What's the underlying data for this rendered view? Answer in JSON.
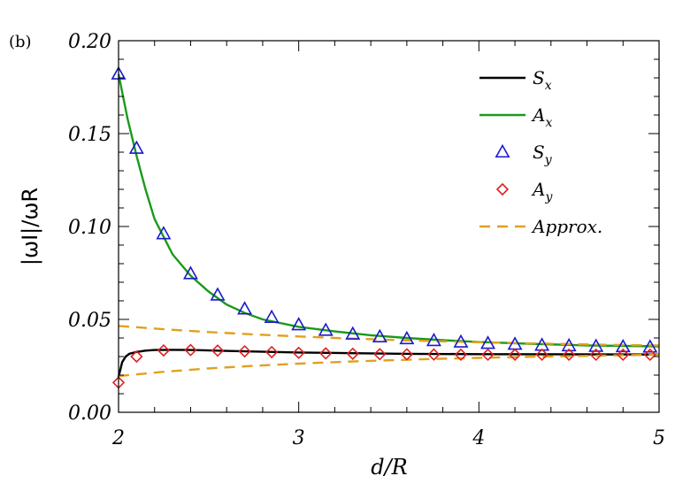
{
  "chart_data": {
    "type": "line",
    "panel_label": "(b)",
    "xlabel": "d/R",
    "ylabel": "|ωI|/ωR",
    "xlim": [
      2,
      5
    ],
    "ylim": [
      0,
      0.2
    ],
    "x_ticks": [
      2,
      3,
      4,
      5
    ],
    "x_tick_labels": [
      "2",
      "3",
      "4",
      "5"
    ],
    "y_ticks": [
      0,
      0.05,
      0.1,
      0.15,
      0.2
    ],
    "y_tick_labels": [
      "0.00",
      "0.05",
      "0.10",
      "0.15",
      "0.20"
    ],
    "grid": false,
    "legend_position": "top-right",
    "series": [
      {
        "name": "S_x",
        "label_main": "S",
        "label_sub": "x",
        "style": "solid",
        "color": "#000000",
        "x": [
          2.0,
          2.02,
          2.04,
          2.06,
          2.1,
          2.15,
          2.2,
          2.3,
          2.4,
          2.5,
          2.7,
          3.0,
          3.3,
          3.6,
          4.0,
          4.5,
          5.0
        ],
        "y": [
          0.019,
          0.027,
          0.03,
          0.0315,
          0.0325,
          0.0332,
          0.0335,
          0.0336,
          0.0335,
          0.0333,
          0.0328,
          0.0322,
          0.0318,
          0.0315,
          0.0313,
          0.0312,
          0.0311
        ]
      },
      {
        "name": "A_x",
        "label_main": "A",
        "label_sub": "x",
        "style": "solid",
        "color": "#1a9a1a",
        "x": [
          2.0,
          2.05,
          2.1,
          2.15,
          2.2,
          2.3,
          2.4,
          2.5,
          2.6,
          2.7,
          2.8,
          3.0,
          3.2,
          3.4,
          3.6,
          3.8,
          4.0,
          4.3,
          4.6,
          5.0
        ],
        "y": [
          0.182,
          0.158,
          0.138,
          0.12,
          0.104,
          0.085,
          0.0735,
          0.065,
          0.058,
          0.0535,
          0.05,
          0.046,
          0.0435,
          0.0415,
          0.04,
          0.0388,
          0.0378,
          0.0368,
          0.036,
          0.0355
        ]
      },
      {
        "name": "S_y",
        "label_main": "S",
        "label_sub": "y",
        "style": "triangle",
        "color": "#1a1acc",
        "x": [
          2.0,
          2.1,
          2.25,
          2.4,
          2.55,
          2.7,
          2.85,
          3.0,
          3.15,
          3.3,
          3.45,
          3.6,
          3.75,
          3.9,
          4.05,
          4.2,
          4.35,
          4.5,
          4.65,
          4.8,
          4.95
        ],
        "y": [
          0.182,
          0.142,
          0.096,
          0.0745,
          0.063,
          0.0555,
          0.051,
          0.047,
          0.044,
          0.042,
          0.0405,
          0.0395,
          0.0385,
          0.0377,
          0.037,
          0.0365,
          0.036,
          0.0357,
          0.0354,
          0.0352,
          0.035
        ]
      },
      {
        "name": "A_y",
        "label_main": "A",
        "label_sub": "y",
        "style": "diamond",
        "color": "#e02020",
        "x": [
          2.0,
          2.1,
          2.25,
          2.4,
          2.55,
          2.7,
          2.85,
          3.0,
          3.15,
          3.3,
          3.45,
          3.6,
          3.75,
          3.9,
          4.05,
          4.2,
          4.35,
          4.5,
          4.65,
          4.8,
          4.95
        ],
        "y": [
          0.016,
          0.03,
          0.0333,
          0.0335,
          0.0332,
          0.0328,
          0.0324,
          0.032,
          0.0317,
          0.0315,
          0.0313,
          0.0312,
          0.0311,
          0.031,
          0.031,
          0.031,
          0.031,
          0.031,
          0.031,
          0.031,
          0.031
        ]
      },
      {
        "name": "Approx.",
        "label_main": "Approx.",
        "label_sub": "",
        "style": "dashed",
        "color": "#e0a020",
        "branches": [
          {
            "x": [
              2.0,
              2.25,
              2.5,
              2.75,
              3.0,
              3.25,
              3.5,
              3.75,
              4.0,
              4.25,
              4.5,
              4.75,
              5.0
            ],
            "y": [
              0.0465,
              0.0447,
              0.0432,
              0.0419,
              0.0408,
              0.0398,
              0.039,
              0.0383,
              0.0377,
              0.0372,
              0.0367,
              0.0363,
              0.036
            ]
          },
          {
            "x": [
              2.0,
              2.25,
              2.5,
              2.75,
              3.0,
              3.25,
              3.5,
              3.75,
              4.0,
              4.25,
              4.5,
              4.75,
              5.0
            ],
            "y": [
              0.0195,
              0.0218,
              0.0236,
              0.025,
              0.0262,
              0.0272,
              0.028,
              0.0287,
              0.0293,
              0.0298,
              0.0302,
              0.0306,
              0.031
            ]
          }
        ]
      }
    ]
  }
}
